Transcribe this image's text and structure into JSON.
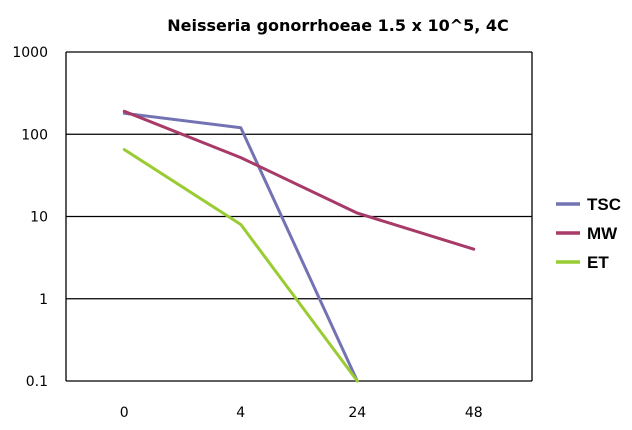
{
  "chart_data": {
    "type": "line",
    "title": "Neisseria gonorrhoeae 1.5 x 10^5, 4C",
    "xlabel": "",
    "ylabel": "",
    "categories": [
      "0",
      "4",
      "24",
      "48"
    ],
    "y_scale": "log",
    "ylim": [
      0.1,
      1000
    ],
    "y_ticks": [
      "0.1",
      "1",
      "10",
      "100",
      "1000"
    ],
    "grid": true,
    "legend_position": "right",
    "series": [
      {
        "name": "TSC",
        "color": "#7373b3",
        "values": [
          180,
          120,
          0.1,
          null
        ]
      },
      {
        "name": "MW",
        "color": "#a83a68",
        "values": [
          190,
          52,
          11,
          4
        ]
      },
      {
        "name": "ET",
        "color": "#99cc33",
        "values": [
          65,
          8,
          0.1,
          null
        ]
      }
    ]
  }
}
